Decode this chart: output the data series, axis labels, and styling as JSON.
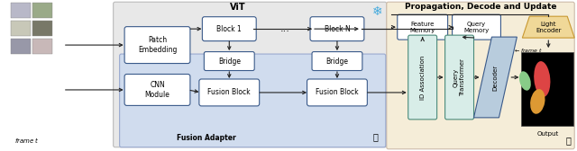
{
  "bg_vit_color": "#e8e8e8",
  "bg_fusion_color": "#d0dcee",
  "bg_prop_color": "#f5edd8",
  "box_edge_dark": "#3a5a8a",
  "box_edge_green": "#4a8a7a",
  "box_fill_white": "#ffffff",
  "box_fill_green": "#d8ede8",
  "box_fill_blue_light": "#b8ccdd",
  "box_fill_trap": "#f0d898",
  "trap_edge": "#c89830",
  "title_vit": "ViT",
  "title_prop": "Propagation, Decode and Update",
  "label_fusion": "Fusion Adapter",
  "snowflake_color": "#44aadd",
  "arrow_color": "#222222",
  "img_colors": [
    "#b8b8c8",
    "#9aaa88",
    "#c8c8b8",
    "#787868",
    "#9898a8",
    "#c8b8b8"
  ],
  "frame_label": "frame $t$",
  "output_label": "Output",
  "frame_t_label": "frame $t$"
}
